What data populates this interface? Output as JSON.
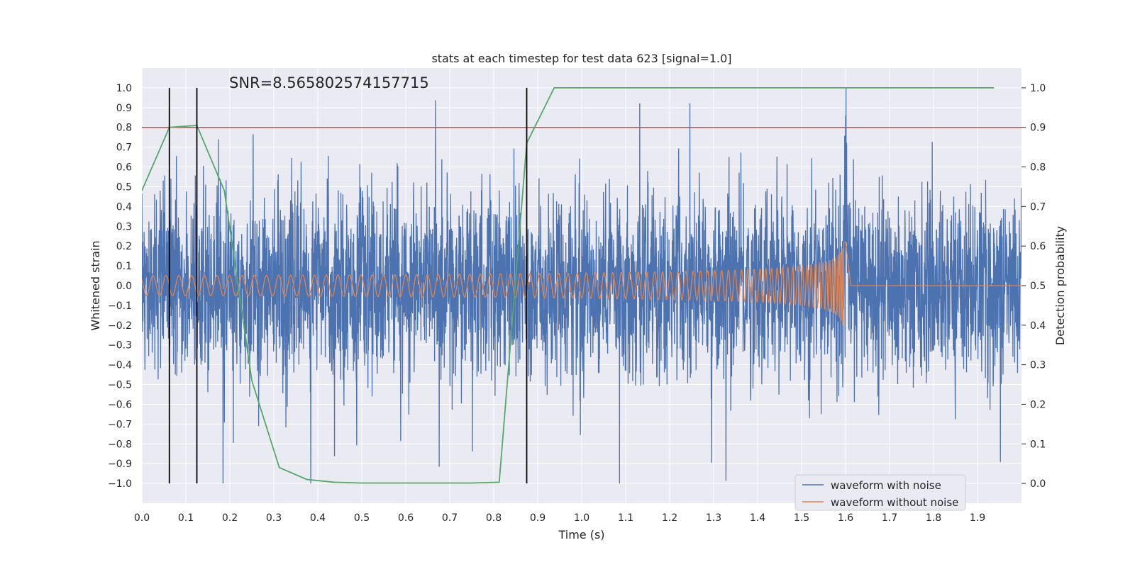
{
  "chart_data": {
    "type": "line",
    "title": "stats at each timestep for test data 623 [signal=1.0]",
    "annotation": "SNR=8.565802574157715",
    "xlabel": "Time (s)",
    "ylabel": "Whitened strain",
    "y2label": "Detection probability",
    "xlim": [
      0.0,
      2.0
    ],
    "ylim": [
      -1.1,
      1.1
    ],
    "y2lim": [
      -0.05,
      1.05
    ],
    "x_ticks": [
      "0.0",
      "0.1",
      "0.2",
      "0.3",
      "0.4",
      "0.5",
      "0.6",
      "0.7",
      "0.8",
      "0.9",
      "1.0",
      "1.1",
      "1.2",
      "1.3",
      "1.4",
      "1.5",
      "1.6",
      "1.7",
      "1.8",
      "1.9"
    ],
    "y_ticks": [
      "1.0",
      "0.9",
      "0.8",
      "0.7",
      "0.6",
      "0.5",
      "0.4",
      "0.3",
      "0.2",
      "0.1",
      "0.0",
      "−0.1",
      "−0.2",
      "−0.3",
      "−0.4",
      "−0.5",
      "−0.6",
      "−0.7",
      "−0.8",
      "−0.9",
      "−1.0"
    ],
    "y2_ticks": [
      "1.0",
      "0.9",
      "0.8",
      "0.7",
      "0.6",
      "0.5",
      "0.4",
      "0.3",
      "0.2",
      "0.1",
      "0.0"
    ],
    "legend": {
      "location": "lower-right",
      "entries": [
        "waveform with noise",
        "waveform without noise"
      ]
    },
    "colors": {
      "noise": "#4c72b0",
      "clean": "#dd8452",
      "probability": "#55a868",
      "threshold": "#c44e52",
      "markers": "#000000",
      "background": "#eaeaf2",
      "grid": "#ffffff"
    },
    "series": [
      {
        "name": "waveform with noise",
        "axis": "left",
        "description": "dense noisy whitened strain, amplitude mostly within ±0.9, samples 0.0–2.0 s",
        "x_range": [
          0.0,
          2.0
        ],
        "y_range": [
          -1.0,
          1.0
        ]
      },
      {
        "name": "waveform without noise",
        "axis": "left",
        "description": "chirp signal, amplitude grows from ~0.05 to ~0.25, merger near t=1.6 s, then zero",
        "x_range": [
          0.0,
          2.0
        ],
        "merger_time": 1.6,
        "peak_amplitude": 0.25
      },
      {
        "name": "Detection probability",
        "axis": "right",
        "x": [
          0.0,
          0.0625,
          0.125,
          0.1875,
          0.25,
          0.3125,
          0.375,
          0.4375,
          0.5,
          0.5625,
          0.625,
          0.6875,
          0.75,
          0.8125,
          0.875,
          0.9375,
          1.0,
          1.0625,
          1.125,
          1.1875,
          1.25,
          1.3125,
          1.375,
          1.4375,
          1.5,
          1.5625,
          1.625,
          1.6875,
          1.75,
          1.8125,
          1.875,
          1.9375
        ],
        "y": [
          0.74,
          0.9,
          0.905,
          0.74,
          0.26,
          0.04,
          0.01,
          0.003,
          0.001,
          0.001,
          0.001,
          0.001,
          0.001,
          0.003,
          0.86,
          1.0,
          1.0,
          1.0,
          1.0,
          1.0,
          1.0,
          1.0,
          1.0,
          1.0,
          1.0,
          1.0,
          1.0,
          1.0,
          1.0,
          1.0,
          1.0,
          1.0
        ]
      }
    ],
    "threshold": {
      "axis": "right",
      "value": 0.9
    },
    "vertical_markers": [
      0.0625,
      0.125,
      0.875
    ]
  }
}
